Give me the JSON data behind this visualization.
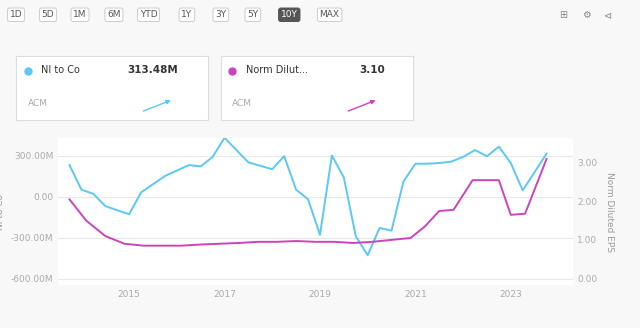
{
  "legend1_label": "NI to Co",
  "legend1_value": "313.48M",
  "legend1_color": "#5bc8f5",
  "legend2_label": "Norm Dilut...",
  "legend2_value": "3.10",
  "legend2_color": "#cc44bb",
  "ticker": "ACM",
  "ylabel_left": "NI to Co",
  "ylabel_right": "Norm Diluted EPS",
  "background_color": "#f8f8f8",
  "plot_bg": "#ffffff",
  "grid_color": "#e8e8e8",
  "ni_x": [
    2013.75,
    2014.0,
    2014.25,
    2014.5,
    2014.75,
    2015.0,
    2015.25,
    2015.5,
    2015.75,
    2016.0,
    2016.25,
    2016.5,
    2016.75,
    2017.0,
    2017.25,
    2017.5,
    2017.75,
    2018.0,
    2018.25,
    2018.5,
    2018.75,
    2019.0,
    2019.25,
    2019.5,
    2019.75,
    2020.0,
    2020.25,
    2020.5,
    2020.75,
    2021.0,
    2021.25,
    2021.5,
    2021.75,
    2022.0,
    2022.25,
    2022.5,
    2022.75,
    2023.0,
    2023.25,
    2023.75
  ],
  "ni_y": [
    230,
    50,
    20,
    -70,
    -100,
    -130,
    30,
    90,
    150,
    190,
    230,
    220,
    290,
    430,
    340,
    250,
    225,
    200,
    295,
    50,
    -20,
    -280,
    300,
    140,
    -290,
    -430,
    -230,
    -250,
    110,
    240,
    240,
    245,
    255,
    290,
    340,
    295,
    365,
    245,
    45,
    313
  ],
  "eps_x": [
    2013.75,
    2014.1,
    2014.5,
    2014.9,
    2015.3,
    2015.7,
    2016.1,
    2016.5,
    2016.9,
    2017.3,
    2017.7,
    2018.1,
    2018.5,
    2018.9,
    2019.3,
    2019.7,
    2020.1,
    2020.5,
    2020.9,
    2021.2,
    2021.5,
    2021.8,
    2022.2,
    2022.75,
    2023.0,
    2023.3,
    2023.75
  ],
  "eps_y": [
    2.05,
    1.5,
    1.1,
    0.9,
    0.85,
    0.85,
    0.85,
    0.88,
    0.9,
    0.92,
    0.95,
    0.95,
    0.97,
    0.95,
    0.95,
    0.92,
    0.95,
    1.0,
    1.05,
    1.35,
    1.75,
    1.78,
    2.55,
    2.55,
    1.65,
    1.68,
    3.1
  ],
  "ylim_left": [
    -650,
    430
  ],
  "ylim_right": [
    -0.18,
    3.65
  ],
  "yticks_left": [
    -600,
    -300,
    0,
    300
  ],
  "yticks_right": [
    0.0,
    1.0,
    2.0,
    3.0
  ],
  "xticks": [
    2015,
    2017,
    2019,
    2021,
    2023
  ],
  "xlim": [
    2013.5,
    2024.3
  ],
  "line_width": 1.4,
  "buttons": [
    "1D",
    "5D",
    "1M",
    "6M",
    "YTD",
    "1Y",
    "3Y",
    "5Y",
    "10Y",
    "MAX"
  ]
}
